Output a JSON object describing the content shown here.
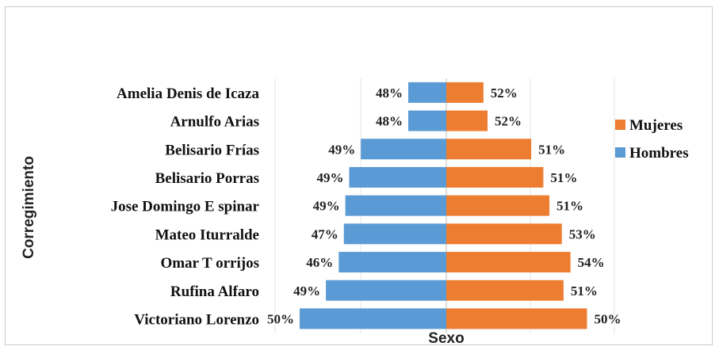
{
  "chart_data": {
    "type": "bar",
    "orientation": "horizontal",
    "layout": "diverging",
    "xlabel": "Sexo",
    "ylabel": "Corregimiento",
    "categories": [
      "Amelia Denis de Icaza",
      "Arnulfo Arias",
      "Belisario Frías",
      "Belisario Porras",
      "Jose Domingo E spinar",
      "Mateo Iturralde",
      "Omar T orrijos",
      "Rufina Alfaro",
      "Victoriano Lorenzo"
    ],
    "series": [
      {
        "name": "Hombres",
        "color": "#5b9bd5",
        "side": "left",
        "values": [
          48,
          48,
          49,
          49,
          49,
          47,
          46,
          49,
          50
        ],
        "labels": [
          "48%",
          "48%",
          "49%",
          "49%",
          "49%",
          "47%",
          "46%",
          "49%",
          "50%"
        ]
      },
      {
        "name": "Mujeres",
        "color": "#ed7d31",
        "side": "right",
        "values": [
          52,
          52,
          51,
          51,
          51,
          53,
          54,
          51,
          50
        ],
        "labels": [
          "52%",
          "52%",
          "51%",
          "51%",
          "51%",
          "53%",
          "54%",
          "51%",
          "50%"
        ]
      }
    ],
    "legend": {
      "placement": "right",
      "entries": [
        {
          "name": "Mujeres",
          "color": "#ed7d31"
        },
        {
          "name": "Hombres",
          "color": "#5b9bd5"
        }
      ]
    },
    "grid": "vertical"
  }
}
